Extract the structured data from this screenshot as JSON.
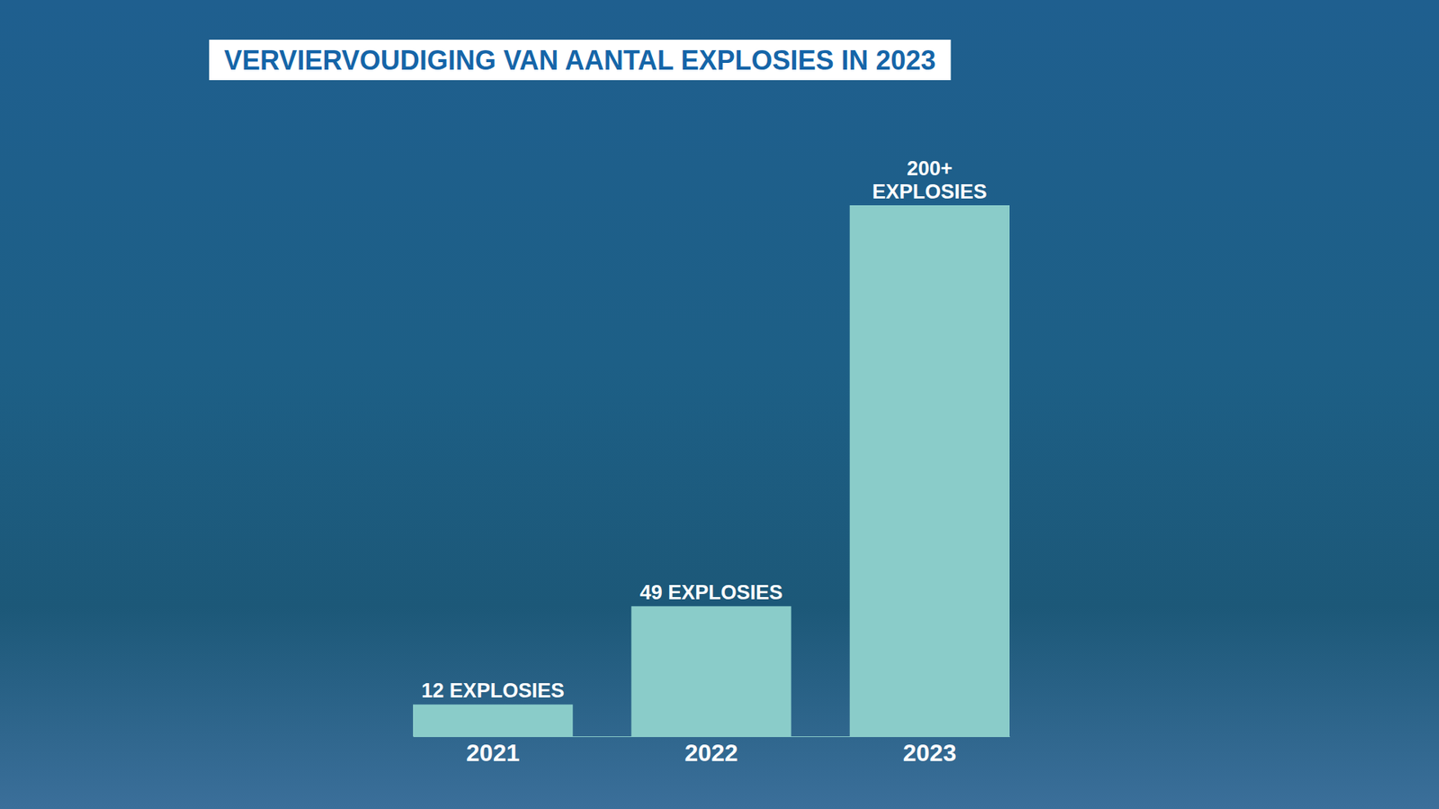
{
  "chart_data": {
    "type": "bar",
    "title": "VERVIERVOUDIGING VAN AANTAL EXPLOSIES IN 2023",
    "categories": [
      "2021",
      "2022",
      "2023"
    ],
    "values": [
      12,
      49,
      200
    ],
    "value_labels": [
      "12 EXPLOSIES",
      "49 EXPLOSIES",
      "200+ EXPLOSIES"
    ],
    "color": "#8accc9",
    "ylim": [
      0,
      200
    ],
    "data_labels": true,
    "tick_labels": "x"
  }
}
